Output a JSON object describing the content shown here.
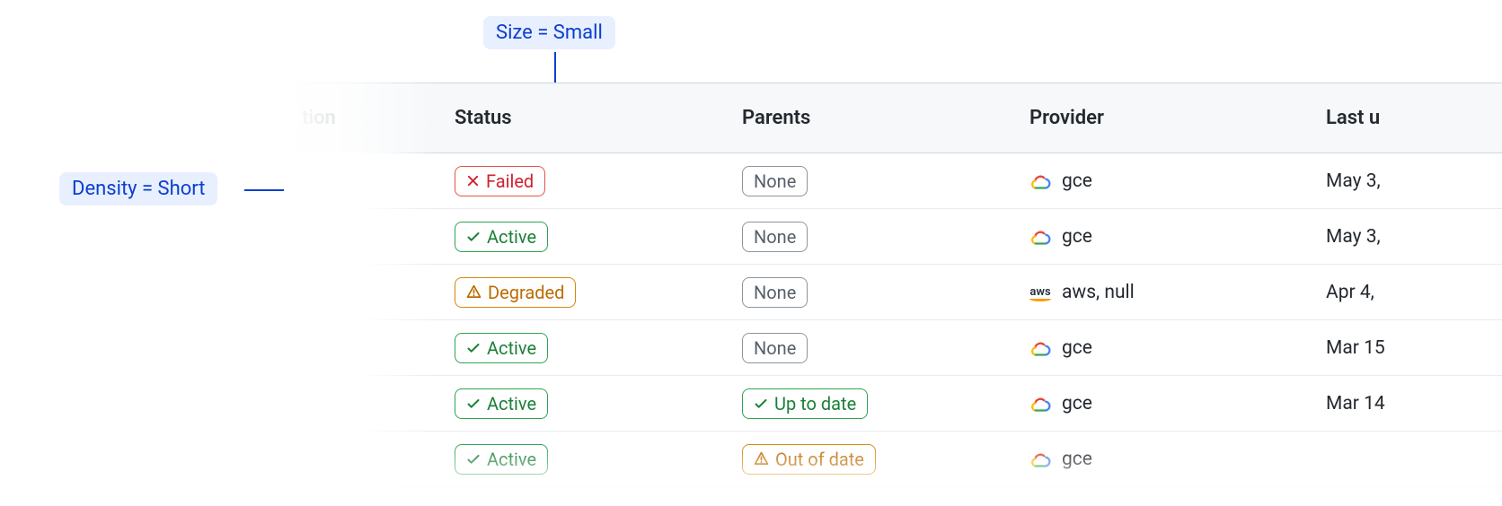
{
  "callouts": {
    "size": "Size = Small",
    "density": "Density = Short"
  },
  "colors": {
    "callout_bg": "#e8efff",
    "callout_fg": "#0b3fcf",
    "header_bg": "#f6f8fa",
    "border": "#d0d7de",
    "row_border": "#e8ebef",
    "status_failed": "#cf222e",
    "status_active": "#1a7f37",
    "status_degraded": "#bc6c00",
    "badge_gray": "#57606a"
  },
  "table": {
    "columns": {
      "prev": "tion",
      "status": "Status",
      "parents": "Parents",
      "provider": "Provider",
      "last": "Last u"
    },
    "rows": [
      {
        "status": {
          "kind": "failed",
          "label": "Failed"
        },
        "parents": {
          "kind": "none",
          "label": "None"
        },
        "provider": {
          "icon": "gce",
          "label": "gce"
        },
        "last": "May 3,"
      },
      {
        "status": {
          "kind": "active",
          "label": "Active"
        },
        "parents": {
          "kind": "none",
          "label": "None"
        },
        "provider": {
          "icon": "gce",
          "label": "gce"
        },
        "last": "May 3,"
      },
      {
        "status": {
          "kind": "degraded",
          "label": "Degraded"
        },
        "parents": {
          "kind": "none",
          "label": "None"
        },
        "provider": {
          "icon": "aws",
          "label": "aws, null"
        },
        "last": "Apr 4,"
      },
      {
        "status": {
          "kind": "active",
          "label": "Active"
        },
        "parents": {
          "kind": "none",
          "label": "None"
        },
        "provider": {
          "icon": "gce",
          "label": "gce"
        },
        "last": "Mar 15"
      },
      {
        "status": {
          "kind": "active",
          "label": "Active"
        },
        "parents": {
          "kind": "uptodate",
          "label": "Up to date"
        },
        "provider": {
          "icon": "gce",
          "label": "gce"
        },
        "last": "Mar 14"
      },
      {
        "status": {
          "kind": "active",
          "label": "Active"
        },
        "parents": {
          "kind": "outofdate",
          "label": "Out of date"
        },
        "provider": {
          "icon": "gce",
          "label": "gce"
        },
        "last": ""
      }
    ]
  }
}
